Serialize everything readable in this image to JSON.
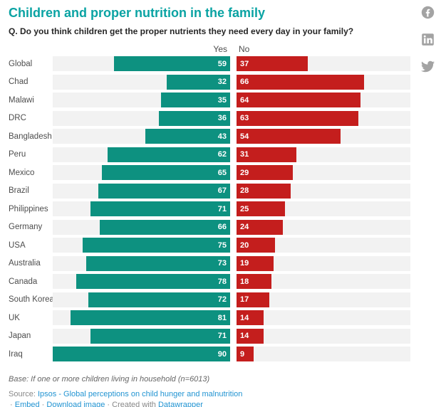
{
  "header": {
    "title": "Children and proper nutrition in the family",
    "subtitle": "Q. Do you think children get the proper nutrients they need every day in your family?"
  },
  "column_headers": {
    "yes": "Yes",
    "no": "No"
  },
  "social_icons": [
    "facebook-icon",
    "linkedin-icon",
    "twitter-icon"
  ],
  "chart_data": {
    "type": "bar",
    "variant": "split-bars-diverging",
    "categories": [
      "Global",
      "Chad",
      "Malawi",
      "DRC",
      "Bangladesh",
      "Peru",
      "Mexico",
      "Brazil",
      "Philippines",
      "Germany",
      "USA",
      "Australia",
      "Canada",
      "South Korea",
      "UK",
      "Japan",
      "Iraq"
    ],
    "series": [
      {
        "name": "Yes",
        "color": "#0d9180",
        "values": [
          59,
          32,
          35,
          36,
          43,
          62,
          65,
          67,
          71,
          66,
          75,
          73,
          78,
          72,
          81,
          71,
          90
        ]
      },
      {
        "name": "No",
        "color": "#c41e1d",
        "values": [
          37,
          66,
          64,
          63,
          54,
          31,
          29,
          28,
          25,
          24,
          20,
          19,
          18,
          17,
          14,
          14,
          9
        ]
      }
    ],
    "xmax": 90,
    "value_labels": "inside-bar",
    "track_color": "#f2f2f2",
    "legend_position": "top-as-column-headers",
    "grid": false
  },
  "footer": {
    "base_note": "Base: If one or more children living in household (n=6013)",
    "source_prefix": "Source:",
    "source_link": "Ipsos - Global perceptions on child hunger and malnutrition",
    "bullet": "·",
    "embed_label": "Embed",
    "download_label": "Download image",
    "created_with": "Created with",
    "datawrapper_label": "Datawrapper"
  },
  "colors": {
    "title_accent": "#0aa3a3",
    "yes_bar": "#0d9180",
    "no_bar": "#c41e1d",
    "link_blue": "#2294d2",
    "social_gray": "#a3a3a3"
  }
}
